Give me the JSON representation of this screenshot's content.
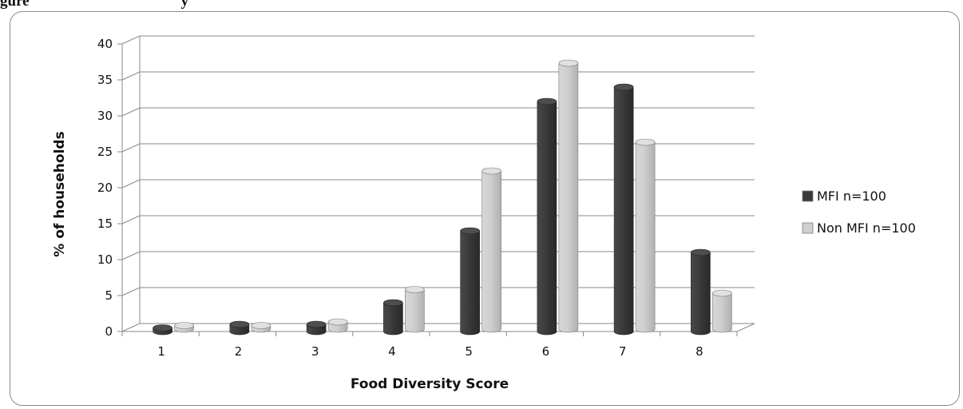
{
  "page": {
    "title": "gure                                        y"
  },
  "chart_data": {
    "type": "bar",
    "style": "3d-clustered-column",
    "title": "",
    "xlabel": "Food Diversity Score",
    "ylabel": "% of households",
    "categories": [
      "1",
      "2",
      "3",
      "4",
      "5",
      "6",
      "7",
      "8"
    ],
    "series": [
      {
        "name": "MFI n=100",
        "color": "#3a3a3a",
        "values": [
          0.5,
          1,
          1,
          4,
          14,
          32,
          34,
          11
        ]
      },
      {
        "name": "Non MFI n=100",
        "color": "#cfcfcf",
        "values": [
          0.5,
          0.5,
          1,
          5.5,
          22,
          37,
          26,
          5
        ]
      }
    ],
    "ylim": [
      0,
      40
    ],
    "yticks": [
      0,
      5,
      10,
      15,
      20,
      25,
      30,
      35,
      40
    ],
    "grid": true,
    "legend": "right"
  }
}
